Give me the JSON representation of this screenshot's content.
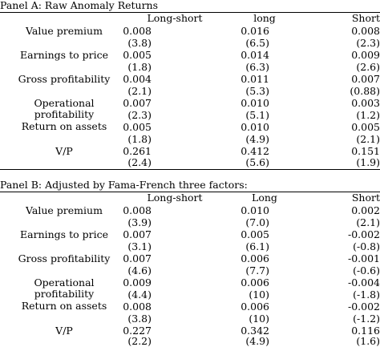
{
  "panel_a": {
    "title": "Panel A: Raw Anomaly Returns",
    "headers": [
      "Long-short",
      "long",
      "Short"
    ],
    "rows": [
      {
        "label": "Value premium",
        "coef": [
          "0.008",
          "0.016",
          "0.008"
        ],
        "t": [
          "(3.8)",
          "(6.5)",
          "(2.3)"
        ]
      },
      {
        "label": "Earnings to price",
        "coef": [
          "0.005",
          "0.014",
          "0.009"
        ],
        "t": [
          "(1.8)",
          "(6.3)",
          "(2.6)"
        ]
      },
      {
        "label": "Gross profitability",
        "coef": [
          "0.004",
          "0.011",
          "0.007"
        ],
        "t": [
          "(2.1)",
          "(5.3)",
          "(0.88)"
        ]
      },
      {
        "label_line1": "Operational",
        "label_line2": "profitability",
        "coef": [
          "0.007",
          "0.010",
          "0.003"
        ],
        "t": [
          "(2.3)",
          "(5.1)",
          "(1.2)"
        ]
      },
      {
        "label": "Return on assets",
        "coef": [
          "0.005",
          "0.010",
          "0.005"
        ],
        "t": [
          "(1.8)",
          "(4.9)",
          "(2.1)"
        ]
      },
      {
        "label": "V/P",
        "coef": [
          "0.261",
          "0.412",
          "0.151"
        ],
        "t": [
          "(2.4)",
          "(5.6)",
          "(1.9)"
        ]
      }
    ]
  },
  "panel_b": {
    "title": "Panel B: Adjusted by Fama-French three factors:",
    "headers": [
      "Long-short",
      "Long",
      "Short"
    ],
    "rows": [
      {
        "label": "Value premium",
        "coef": [
          "0.008",
          "0.010",
          "0.002"
        ],
        "t": [
          "(3.9)",
          "(7.0)",
          "(2.1)"
        ]
      },
      {
        "label": "Earnings to price",
        "coef": [
          "0.007",
          "0.005",
          "-0.002"
        ],
        "t": [
          "(3.1)",
          "(6.1)",
          "(-0.8)"
        ]
      },
      {
        "label": "Gross profitability",
        "coef": [
          "0.007",
          "0.006",
          "-0.001"
        ],
        "t": [
          "(4.6)",
          "(7.7)",
          "(-0.6)"
        ]
      },
      {
        "label_line1": "Operational",
        "label_line2": "profitability",
        "coef": [
          "0.009",
          "0.006",
          "-0.004"
        ],
        "t": [
          "(4.4)",
          "(10)",
          "(-1.8)"
        ]
      },
      {
        "label": "Return on assets",
        "coef": [
          "0.008",
          "0.006",
          "-0.002"
        ],
        "t": [
          "(3.8)",
          "(10)",
          "(-1.2)"
        ]
      },
      {
        "label": "V/P",
        "coef": [
          "0.227",
          "0.342",
          "0.116"
        ],
        "t": [
          "(2.2)",
          "(4.9)",
          "(1.6)"
        ]
      }
    ]
  }
}
